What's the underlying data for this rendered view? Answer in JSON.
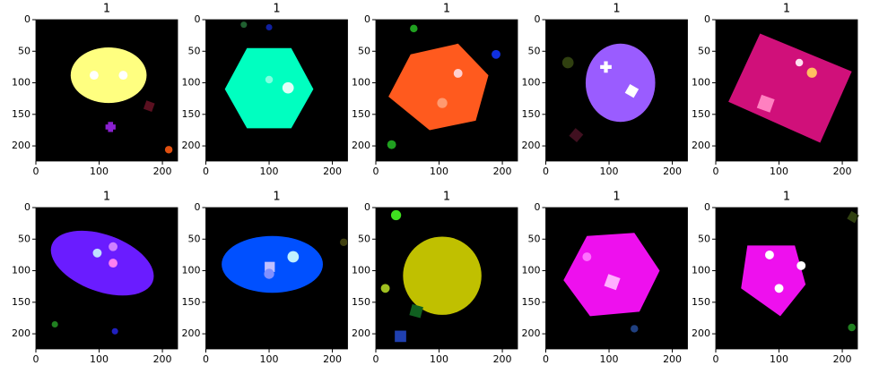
{
  "chart_data": [
    {
      "type": "image",
      "title": "1",
      "xlim": [
        0,
        224
      ],
      "ylim": [
        224,
        0
      ],
      "xticks": [
        0,
        100,
        200
      ],
      "yticks": [
        0,
        50,
        100,
        150,
        200
      ]
    },
    {
      "type": "image",
      "title": "1",
      "xlim": [
        0,
        224
      ],
      "ylim": [
        224,
        0
      ],
      "xticks": [
        0,
        100,
        200
      ],
      "yticks": [
        0,
        50,
        100,
        150,
        200
      ]
    },
    {
      "type": "image",
      "title": "1",
      "xlim": [
        0,
        224
      ],
      "ylim": [
        224,
        0
      ],
      "xticks": [
        0,
        100,
        200
      ],
      "yticks": [
        0,
        50,
        100,
        150,
        200
      ]
    },
    {
      "type": "image",
      "title": "1",
      "xlim": [
        0,
        224
      ],
      "ylim": [
        224,
        0
      ],
      "xticks": [
        0,
        100,
        200
      ],
      "yticks": [
        0,
        50,
        100,
        150,
        200
      ]
    },
    {
      "type": "image",
      "title": "1",
      "xlim": [
        0,
        224
      ],
      "ylim": [
        224,
        0
      ],
      "xticks": [
        0,
        100,
        200
      ],
      "yticks": [
        0,
        50,
        100,
        150,
        200
      ]
    },
    {
      "type": "image",
      "title": "1",
      "xlim": [
        0,
        224
      ],
      "ylim": [
        224,
        0
      ],
      "xticks": [
        0,
        100,
        200
      ],
      "yticks": [
        0,
        50,
        100,
        150,
        200
      ]
    },
    {
      "type": "image",
      "title": "1",
      "xlim": [
        0,
        224
      ],
      "ylim": [
        224,
        0
      ],
      "xticks": [
        0,
        100,
        200
      ],
      "yticks": [
        0,
        50,
        100,
        150,
        200
      ]
    },
    {
      "type": "image",
      "title": "1",
      "xlim": [
        0,
        224
      ],
      "ylim": [
        224,
        0
      ],
      "xticks": [
        0,
        100,
        200
      ],
      "yticks": [
        0,
        50,
        100,
        150,
        200
      ]
    },
    {
      "type": "image",
      "title": "1",
      "xlim": [
        0,
        224
      ],
      "ylim": [
        224,
        0
      ],
      "xticks": [
        0,
        100,
        200
      ],
      "yticks": [
        0,
        50,
        100,
        150,
        200
      ]
    },
    {
      "type": "image",
      "title": "1",
      "xlim": [
        0,
        224
      ],
      "ylim": [
        224,
        0
      ],
      "xticks": [
        0,
        100,
        200
      ],
      "yticks": [
        0,
        50,
        100,
        150,
        200
      ]
    }
  ]
}
